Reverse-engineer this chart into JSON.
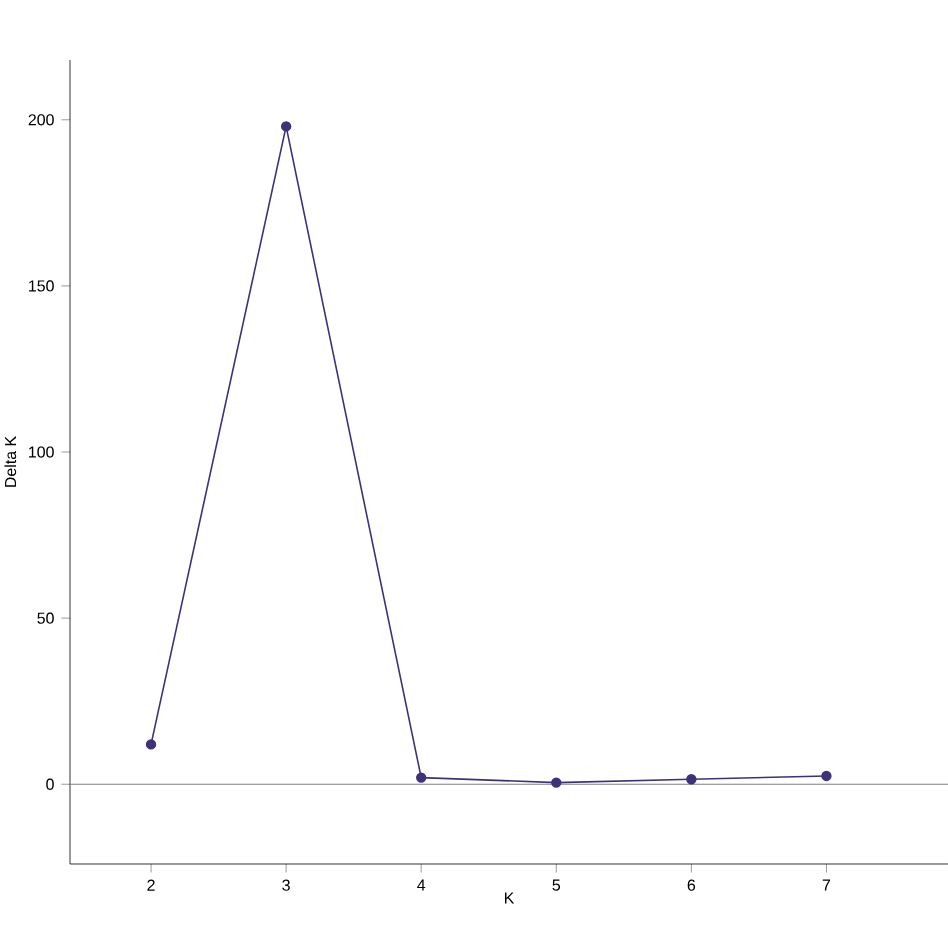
{
  "chart_data": {
    "type": "line",
    "xlabel": "K",
    "ylabel": "Delta K",
    "x": [
      2,
      3,
      4,
      5,
      6,
      7
    ],
    "series": [
      {
        "color": "#3f3177",
        "values": [
          12,
          198,
          2,
          0.5,
          1.5,
          2.5
        ]
      }
    ],
    "xlim": [
      1.4,
      7.9
    ],
    "xticks": [
      2,
      3,
      4,
      5,
      6,
      7
    ],
    "ylim": [
      -24,
      218
    ],
    "yticks": [
      0,
      50,
      100,
      150,
      200
    ],
    "ref_lines": [
      {
        "axis": "y",
        "value": 0,
        "color": "#808080"
      }
    ],
    "marker": "circle",
    "line_style": "solid",
    "grid": false
  }
}
